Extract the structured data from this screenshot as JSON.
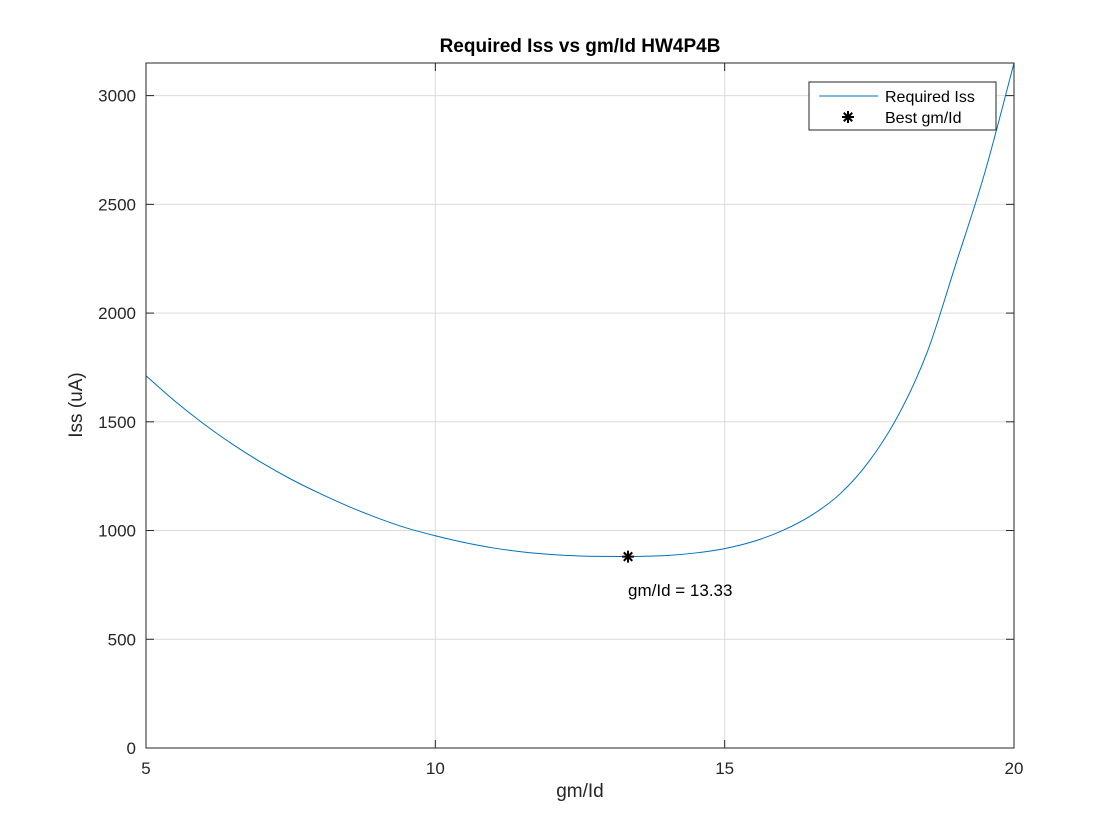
{
  "chart_data": {
    "type": "line",
    "title": "Required Iss vs gm/Id HW4P4B",
    "xlabel": "gm/Id",
    "ylabel": "Iss (uA)",
    "xlim": [
      5,
      20
    ],
    "ylim": [
      0,
      3150
    ],
    "xticks": [
      5,
      10,
      15,
      20
    ],
    "yticks": [
      0,
      500,
      1000,
      1500,
      2000,
      2500,
      3000
    ],
    "grid": true,
    "legend_position": "top-right",
    "series": [
      {
        "name": "Required Iss",
        "color": "#0072bd",
        "x": [
          5,
          5.5,
          6,
          6.5,
          7,
          7.5,
          8,
          8.5,
          9,
          9.5,
          10,
          10.5,
          11,
          11.5,
          12,
          12.5,
          13,
          13.33,
          13.5,
          14,
          14.5,
          15,
          15.5,
          16,
          16.5,
          17,
          17.5,
          18,
          18.5,
          19,
          19.5,
          20
        ],
        "y": [
          1712,
          1595,
          1490,
          1396,
          1312,
          1237,
          1171,
          1111,
          1058,
          1012,
          976,
          945,
          920,
          902,
          890,
          883,
          881,
          880,
          881,
          885,
          897,
          917,
          950,
          1000,
          1070,
          1170,
          1320,
          1530,
          1820,
          2230,
          2650,
          3150
        ]
      },
      {
        "name": "Best gm/Id",
        "marker": "asterisk",
        "color": "#000000",
        "x": [
          13.33
        ],
        "y": [
          880
        ]
      }
    ],
    "annotations": [
      {
        "text": "gm/Id = 13.33",
        "x": 13.33,
        "y": 700
      }
    ]
  }
}
